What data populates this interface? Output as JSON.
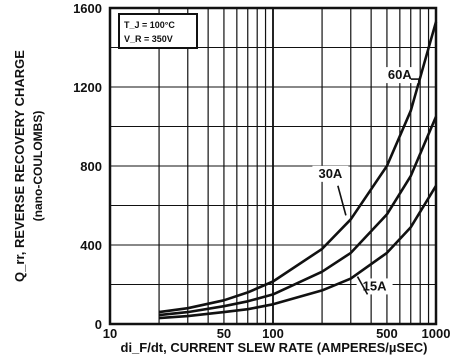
{
  "chart_data": {
    "type": "line",
    "xlabel": "di_F/dt, CURRENT SLEW RATE (AMPERES/µSEC)",
    "ylabel": "Q_rr, REVERSE RECOVERY CHARGE",
    "ylabel_sub": "(nano-COULOMBS)",
    "x_scale": "log",
    "xlim": [
      10,
      1000
    ],
    "ylim": [
      0,
      1600
    ],
    "grid": true,
    "x_ticks": [
      10,
      50,
      100,
      500,
      1000
    ],
    "y_ticks": [
      0,
      400,
      800,
      1200,
      1600
    ],
    "conditions": {
      "line1": "T_J = 100°C",
      "line2": "V_R = 350V"
    },
    "series": [
      {
        "name": "60A",
        "x": [
          20,
          30,
          50,
          70,
          100,
          200,
          300,
          500,
          700,
          1000
        ],
        "y": [
          60,
          80,
          120,
          160,
          215,
          380,
          530,
          800,
          1080,
          1530
        ]
      },
      {
        "name": "30A",
        "x": [
          20,
          30,
          50,
          70,
          100,
          200,
          300,
          500,
          700,
          1000
        ],
        "y": [
          45,
          60,
          90,
          115,
          150,
          265,
          360,
          555,
          750,
          1050
        ]
      },
      {
        "name": "15A",
        "x": [
          20,
          30,
          50,
          70,
          100,
          200,
          300,
          500,
          700,
          1000
        ],
        "y": [
          30,
          40,
          60,
          75,
          100,
          170,
          230,
          360,
          490,
          700
        ]
      }
    ]
  }
}
